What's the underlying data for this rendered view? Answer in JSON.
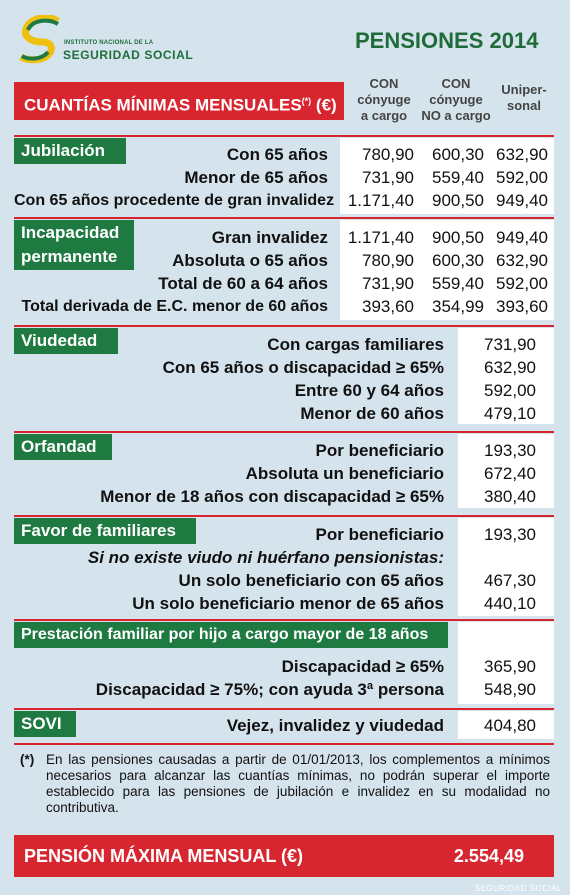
{
  "header": {
    "institute_line1": "INSTITUTO NACIONAL DE LA",
    "institute_line2": "SEGURIDAD SOCIAL",
    "title": "PENSIONES 2014"
  },
  "columns": {
    "c1": [
      "CON",
      "cónyuge",
      "a cargo"
    ],
    "c2": [
      "CON",
      "cónyuge",
      "NO a cargo"
    ],
    "c3": [
      "Uniper-",
      "sonal"
    ]
  },
  "banner_title": "CUANTÍAS MÍNIMAS MENSUALES",
  "banner_sup": "(*)",
  "banner_unit": "(€)",
  "sections": {
    "jubilacion": {
      "title": "Jubilación",
      "rows": [
        {
          "label": "Con 65 años",
          "v": [
            "780,90",
            "600,30",
            "632,90"
          ]
        },
        {
          "label": "Menor de 65 años",
          "v": [
            "731,90",
            "559,40",
            "592,00"
          ]
        },
        {
          "label": "Con 65 años procedente de gran invalidez",
          "v": [
            "1.171,40",
            "900,50",
            "949,40"
          ]
        }
      ]
    },
    "incapacidad": {
      "title": [
        "Incapacidad",
        "permanente"
      ],
      "rows": [
        {
          "label": "Gran invalidez",
          "v": [
            "1.171,40",
            "900,50",
            "949,40"
          ]
        },
        {
          "label": "Absoluta o 65 años",
          "v": [
            "780,90",
            "600,30",
            "632,90"
          ]
        },
        {
          "label": "Total de 60 a 64 años",
          "v": [
            "731,90",
            "559,40",
            "592,00"
          ]
        },
        {
          "label": "Total derivada de E.C. menor de 60 años",
          "v": [
            "393,60",
            "354,99",
            "393,60"
          ]
        }
      ]
    },
    "viudedad": {
      "title": "Viudedad",
      "rows": [
        {
          "label": "Con cargas familiares",
          "v": "731,90"
        },
        {
          "label": "Con 65 años o discapacidad ≥ 65%",
          "v": "632,90"
        },
        {
          "label": "Entre 60 y 64 años",
          "v": "592,00"
        },
        {
          "label": "Menor de 60 años",
          "v": "479,10"
        }
      ]
    },
    "orfandad": {
      "title": "Orfandad",
      "rows": [
        {
          "label": "Por beneficiario",
          "v": "193,30"
        },
        {
          "label": "Absoluta un beneficiario",
          "v": "672,40"
        },
        {
          "label": "Menor de 18 años con discapacidad ≥ 65%",
          "v": "380,40"
        }
      ]
    },
    "favor": {
      "title": "Favor de familiares",
      "row1": {
        "label": "Por beneficiario",
        "v": "193,30"
      },
      "note": "Si no existe viudo ni huérfano pensionistas:",
      "rows": [
        {
          "label": "Un solo beneficiario con 65 años",
          "v": "467,30"
        },
        {
          "label": "Un solo beneficiario menor de 65 años",
          "v": "440,10"
        }
      ]
    },
    "prestacion": {
      "title": "Prestación familiar por hijo a cargo mayor de 18 años",
      "rows": [
        {
          "label": "Discapacidad ≥ 65%",
          "v": "365,90"
        },
        {
          "label": "Discapacidad ≥ 75%; con ayuda 3ª persona",
          "v": "548,90"
        }
      ]
    },
    "sovi": {
      "title": "SOVI",
      "row": {
        "label": "Vejez, invalidez y viudedad",
        "v": "404,80"
      }
    }
  },
  "footnote": {
    "marker": "(*)",
    "text": "En las pensiones causadas a partir de 01/01/2013, los complementos a mínimos necesarios para alcanzar las cuantías mínimas, no podrán superar el importe establecido para las pensiones de jubilación e invalidez en su modalidad no contributiva."
  },
  "max": {
    "label": "PENSIÓN MÁXIMA MENSUAL (€)",
    "value": "2.554,49"
  },
  "watermark": "SEGURIDAD SOCIAL",
  "colors": {
    "red": "#d82631",
    "green": "#1f7a42",
    "bg": "#d4e3ec"
  }
}
